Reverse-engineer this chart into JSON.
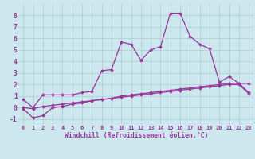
{
  "xlabel": "Windchill (Refroidissement éolien,°C)",
  "bg_color": "#cce8ee",
  "line_color": "#993399",
  "grid_color": "#aacccc",
  "axis_label_bg": "#c8d8e8",
  "x_values": [
    0,
    1,
    2,
    3,
    4,
    5,
    6,
    7,
    8,
    9,
    10,
    11,
    12,
    13,
    14,
    15,
    16,
    17,
    18,
    19,
    20,
    21,
    22,
    23
  ],
  "line1_y": [
    0.7,
    0.0,
    1.1,
    1.1,
    1.1,
    1.1,
    1.3,
    1.4,
    3.2,
    3.3,
    5.7,
    5.5,
    4.1,
    5.0,
    5.3,
    8.2,
    8.2,
    6.2,
    5.5,
    5.1,
    2.2,
    2.7,
    2.1,
    2.1
  ],
  "line2_y": [
    -0.1,
    -0.9,
    -0.7,
    0.0,
    0.1,
    0.3,
    0.4,
    0.6,
    0.7,
    0.8,
    1.0,
    1.1,
    1.2,
    1.3,
    1.4,
    1.5,
    1.6,
    1.7,
    1.8,
    1.9,
    2.0,
    2.1,
    2.1,
    1.3
  ],
  "line3_y": [
    0.0,
    -0.1,
    0.1,
    0.2,
    0.3,
    0.4,
    0.5,
    0.6,
    0.7,
    0.8,
    0.9,
    1.0,
    1.1,
    1.2,
    1.3,
    1.4,
    1.5,
    1.6,
    1.7,
    1.8,
    1.9,
    2.0,
    2.0,
    1.2
  ],
  "xlim": [
    -0.5,
    23.5
  ],
  "ylim": [
    -1.5,
    9.0
  ],
  "yticks": [
    -1,
    0,
    1,
    2,
    3,
    4,
    5,
    6,
    7,
    8
  ],
  "xticks": [
    0,
    1,
    2,
    3,
    4,
    5,
    6,
    7,
    8,
    9,
    10,
    11,
    12,
    13,
    14,
    15,
    16,
    17,
    18,
    19,
    20,
    21,
    22,
    23
  ],
  "xlabel_fontsize": 5.8,
  "tick_fontsize": 5.0,
  "ytick_fontsize": 5.8,
  "linewidth": 0.9,
  "markersize": 2.0
}
